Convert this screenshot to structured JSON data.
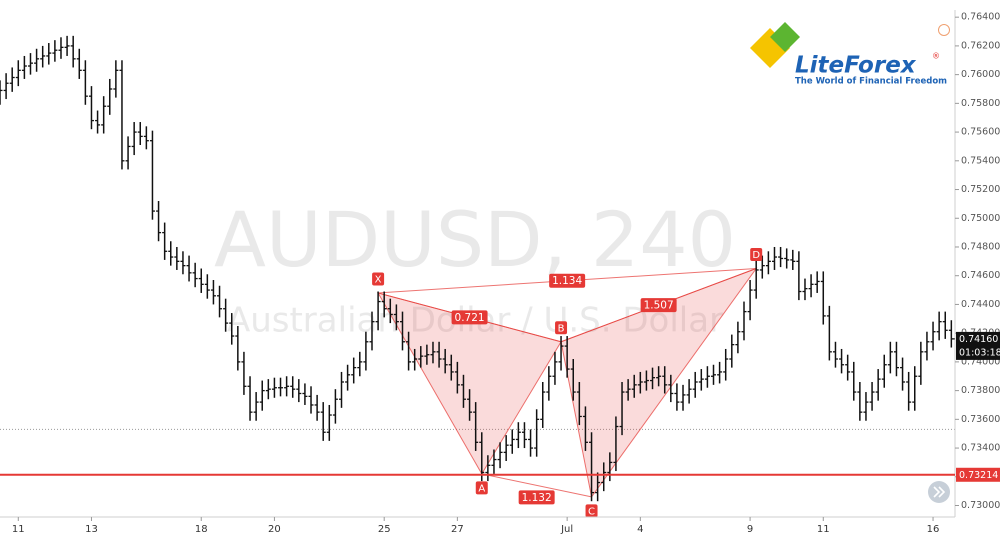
{
  "chart_data": {
    "type": "ohlc",
    "watermark": {
      "symbol": "AUDUSD, 240",
      "description": "Australian Dollar / U.S. Dollar"
    },
    "logo": {
      "brand": "LiteForex",
      "mark": "®",
      "tagline": "The World of Financial Freedom"
    },
    "ylim": [
      0.7292,
      0.7645
    ],
    "yticks": [
      {
        "value": 0.764,
        "label": "0.76400"
      },
      {
        "value": 0.762,
        "label": "0.76200"
      },
      {
        "value": 0.76,
        "label": "0.76000"
      },
      {
        "value": 0.758,
        "label": "0.75800"
      },
      {
        "value": 0.756,
        "label": "0.75600"
      },
      {
        "value": 0.754,
        "label": "0.75400"
      },
      {
        "value": 0.752,
        "label": "0.75200"
      },
      {
        "value": 0.75,
        "label": "0.75000"
      },
      {
        "value": 0.748,
        "label": "0.74800"
      },
      {
        "value": 0.746,
        "label": "0.74600"
      },
      {
        "value": 0.744,
        "label": "0.74400"
      },
      {
        "value": 0.742,
        "label": "0.74200"
      },
      {
        "value": 0.74,
        "label": "0.74000"
      },
      {
        "value": 0.738,
        "label": "0.73800"
      },
      {
        "value": 0.736,
        "label": "0.73600"
      },
      {
        "value": 0.734,
        "label": "0.73400"
      },
      {
        "value": 0.732,
        "label": "0.73200"
      },
      {
        "value": 0.73,
        "label": "0.73000"
      }
    ],
    "xlim": [
      0,
      156.6
    ],
    "xticks": [
      {
        "value": 3,
        "label": "11"
      },
      {
        "value": 15,
        "label": "13"
      },
      {
        "value": 33,
        "label": "18"
      },
      {
        "value": 45,
        "label": "20"
      },
      {
        "value": 63,
        "label": "25"
      },
      {
        "value": 75,
        "label": "27"
      },
      {
        "value": 93,
        "label": "Jul"
      },
      {
        "value": 105,
        "label": "4"
      },
      {
        "value": 123,
        "label": "9"
      },
      {
        "value": 135,
        "label": "11"
      },
      {
        "value": 153,
        "label": "16"
      }
    ],
    "color": "#111111",
    "bars": [
      [
        0.7585,
        0.7596,
        0.7579,
        0.7589
      ],
      [
        0.7589,
        0.7601,
        0.7583,
        0.7594
      ],
      [
        0.7594,
        0.7605,
        0.7588,
        0.7598
      ],
      [
        0.7598,
        0.761,
        0.7592,
        0.7603
      ],
      [
        0.7603,
        0.7613,
        0.7597,
        0.7606
      ],
      [
        0.7606,
        0.7615,
        0.76,
        0.7608
      ],
      [
        0.7608,
        0.7618,
        0.7602,
        0.7611
      ],
      [
        0.7611,
        0.762,
        0.7605,
        0.7613
      ],
      [
        0.7613,
        0.7622,
        0.7607,
        0.7615
      ],
      [
        0.7615,
        0.7624,
        0.7609,
        0.7617
      ],
      [
        0.7617,
        0.7626,
        0.7611,
        0.7619
      ],
      [
        0.7619,
        0.7627,
        0.7613,
        0.762
      ],
      [
        0.762,
        0.7627,
        0.7605,
        0.7611
      ],
      [
        0.7611,
        0.7618,
        0.7597,
        0.7603
      ],
      [
        0.7603,
        0.761,
        0.7579,
        0.7585
      ],
      [
        0.7585,
        0.7592,
        0.7562,
        0.7568
      ],
      [
        0.7568,
        0.7575,
        0.7559,
        0.7565
      ],
      [
        0.7565,
        0.7585,
        0.7559,
        0.7578
      ],
      [
        0.7578,
        0.7597,
        0.7572,
        0.759
      ],
      [
        0.759,
        0.761,
        0.7584,
        0.7603
      ],
      [
        0.7603,
        0.761,
        0.7534,
        0.754
      ],
      [
        0.754,
        0.7557,
        0.7534,
        0.755
      ],
      [
        0.755,
        0.7567,
        0.7544,
        0.756
      ],
      [
        0.756,
        0.7567,
        0.7551,
        0.7557
      ],
      [
        0.7557,
        0.7564,
        0.7548,
        0.7554
      ],
      [
        0.7554,
        0.7561,
        0.7499,
        0.7505
      ],
      [
        0.7505,
        0.7512,
        0.7484,
        0.749
      ],
      [
        0.749,
        0.7497,
        0.7471,
        0.7477
      ],
      [
        0.7477,
        0.7484,
        0.7467,
        0.7473
      ],
      [
        0.7473,
        0.748,
        0.7464,
        0.747
      ],
      [
        0.747,
        0.7477,
        0.7461,
        0.7467
      ],
      [
        0.7467,
        0.7474,
        0.7456,
        0.7462
      ],
      [
        0.7462,
        0.7469,
        0.7452,
        0.7458
      ],
      [
        0.7458,
        0.7465,
        0.7448,
        0.7454
      ],
      [
        0.7454,
        0.7461,
        0.7444,
        0.745
      ],
      [
        0.745,
        0.7457,
        0.744,
        0.7446
      ],
      [
        0.7446,
        0.7453,
        0.7431,
        0.7437
      ],
      [
        0.7437,
        0.7444,
        0.7421,
        0.7427
      ],
      [
        0.7427,
        0.7434,
        0.7412,
        0.7418
      ],
      [
        0.7418,
        0.7425,
        0.7394,
        0.74
      ],
      [
        0.74,
        0.7407,
        0.7377,
        0.7383
      ],
      [
        0.7383,
        0.739,
        0.7359,
        0.7365
      ],
      [
        0.7365,
        0.7379,
        0.7359,
        0.7372
      ],
      [
        0.7372,
        0.7387,
        0.7366,
        0.738
      ],
      [
        0.738,
        0.7388,
        0.7374,
        0.7381
      ],
      [
        0.7381,
        0.7389,
        0.7375,
        0.7382
      ],
      [
        0.7382,
        0.7389,
        0.7376,
        0.7382
      ],
      [
        0.7382,
        0.739,
        0.7376,
        0.7383
      ],
      [
        0.7383,
        0.739,
        0.7375,
        0.7381
      ],
      [
        0.7381,
        0.7388,
        0.7372,
        0.7378
      ],
      [
        0.7378,
        0.7385,
        0.737,
        0.7376
      ],
      [
        0.7376,
        0.7383,
        0.7364,
        0.737
      ],
      [
        0.737,
        0.7377,
        0.7359,
        0.7365
      ],
      [
        0.7365,
        0.7372,
        0.7345,
        0.7351
      ],
      [
        0.7351,
        0.737,
        0.7345,
        0.7363
      ],
      [
        0.7363,
        0.7381,
        0.7357,
        0.7374
      ],
      [
        0.7374,
        0.7393,
        0.7368,
        0.7386
      ],
      [
        0.7386,
        0.7398,
        0.738,
        0.7391
      ],
      [
        0.7391,
        0.7403,
        0.7385,
        0.7396
      ],
      [
        0.7396,
        0.7407,
        0.739,
        0.74
      ],
      [
        0.74,
        0.7421,
        0.7394,
        0.7414
      ],
      [
        0.7414,
        0.7435,
        0.7408,
        0.7428
      ],
      [
        0.7428,
        0.7449,
        0.7422,
        0.7442
      ],
      [
        0.7442,
        0.7449,
        0.7431,
        0.7437
      ],
      [
        0.7437,
        0.7444,
        0.7427,
        0.7433
      ],
      [
        0.7433,
        0.744,
        0.7422,
        0.7428
      ],
      [
        0.7428,
        0.7435,
        0.7408,
        0.7414
      ],
      [
        0.7414,
        0.7421,
        0.7394,
        0.74
      ],
      [
        0.74,
        0.7409,
        0.7394,
        0.7402
      ],
      [
        0.7402,
        0.7411,
        0.7396,
        0.7404
      ],
      [
        0.7404,
        0.7412,
        0.7398,
        0.7405
      ],
      [
        0.7405,
        0.7414,
        0.7399,
        0.7407
      ],
      [
        0.7407,
        0.7414,
        0.7396,
        0.7402
      ],
      [
        0.7402,
        0.7409,
        0.7392,
        0.7398
      ],
      [
        0.7398,
        0.7405,
        0.7387,
        0.7393
      ],
      [
        0.7393,
        0.74,
        0.7378,
        0.7384
      ],
      [
        0.7384,
        0.7391,
        0.7368,
        0.7374
      ],
      [
        0.7374,
        0.7381,
        0.7359,
        0.7365
      ],
      [
        0.7365,
        0.7372,
        0.7338,
        0.7344
      ],
      [
        0.7344,
        0.7351,
        0.7317,
        0.7323
      ],
      [
        0.7323,
        0.7335,
        0.7317,
        0.7328
      ],
      [
        0.7328,
        0.7339,
        0.7322,
        0.7332
      ],
      [
        0.7332,
        0.7344,
        0.7326,
        0.7337
      ],
      [
        0.7337,
        0.7349,
        0.7331,
        0.7342
      ],
      [
        0.7342,
        0.7353,
        0.7336,
        0.7346
      ],
      [
        0.7346,
        0.7358,
        0.734,
        0.7351
      ],
      [
        0.7351,
        0.7358,
        0.734,
        0.7346
      ],
      [
        0.7346,
        0.7353,
        0.7334,
        0.734
      ],
      [
        0.734,
        0.7367,
        0.7334,
        0.736
      ],
      [
        0.736,
        0.7386,
        0.7354,
        0.7379
      ],
      [
        0.7379,
        0.7397,
        0.7373,
        0.739
      ],
      [
        0.739,
        0.7407,
        0.7384,
        0.74
      ],
      [
        0.74,
        0.7418,
        0.7394,
        0.7411
      ],
      [
        0.7411,
        0.7418,
        0.7389,
        0.7395
      ],
      [
        0.7395,
        0.7402,
        0.7373,
        0.7379
      ],
      [
        0.7379,
        0.7386,
        0.7356,
        0.7362
      ],
      [
        0.7362,
        0.7369,
        0.7338,
        0.7344
      ],
      [
        0.7344,
        0.7351,
        0.7303,
        0.7309
      ],
      [
        0.7309,
        0.7323,
        0.7303,
        0.7316
      ],
      [
        0.7316,
        0.733,
        0.731,
        0.7323
      ],
      [
        0.7323,
        0.7337,
        0.7317,
        0.733
      ],
      [
        0.733,
        0.7362,
        0.7324,
        0.7355
      ],
      [
        0.7355,
        0.7386,
        0.7349,
        0.7379
      ],
      [
        0.7379,
        0.7388,
        0.7373,
        0.7381
      ],
      [
        0.7381,
        0.7391,
        0.7375,
        0.7384
      ],
      [
        0.7384,
        0.7393,
        0.7378,
        0.7386
      ],
      [
        0.7386,
        0.7394,
        0.738,
        0.7387
      ],
      [
        0.7387,
        0.7396,
        0.7381,
        0.7389
      ],
      [
        0.7389,
        0.7397,
        0.7383,
        0.739
      ],
      [
        0.739,
        0.7397,
        0.7378,
        0.7384
      ],
      [
        0.7384,
        0.7391,
        0.7372,
        0.7378
      ],
      [
        0.7378,
        0.7385,
        0.7366,
        0.7372
      ],
      [
        0.7372,
        0.7384,
        0.7366,
        0.7377
      ],
      [
        0.7377,
        0.7388,
        0.7371,
        0.7381
      ],
      [
        0.7381,
        0.7393,
        0.7375,
        0.7386
      ],
      [
        0.7386,
        0.7395,
        0.738,
        0.7388
      ],
      [
        0.7388,
        0.7397,
        0.7382,
        0.739
      ],
      [
        0.739,
        0.7398,
        0.7384,
        0.7391
      ],
      [
        0.7391,
        0.74,
        0.7385,
        0.7393
      ],
      [
        0.7393,
        0.7409,
        0.7387,
        0.7402
      ],
      [
        0.7402,
        0.7419,
        0.7396,
        0.7412
      ],
      [
        0.7412,
        0.7428,
        0.7406,
        0.7421
      ],
      [
        0.7421,
        0.7442,
        0.7415,
        0.7435
      ],
      [
        0.7435,
        0.7457,
        0.7429,
        0.745
      ],
      [
        0.745,
        0.7471,
        0.7444,
        0.7464
      ],
      [
        0.7464,
        0.7474,
        0.7458,
        0.7467
      ],
      [
        0.7467,
        0.7477,
        0.7461,
        0.747
      ],
      [
        0.747,
        0.748,
        0.7464,
        0.7473
      ],
      [
        0.7473,
        0.748,
        0.7466,
        0.7472
      ],
      [
        0.7472,
        0.7479,
        0.7465,
        0.7471
      ],
      [
        0.7471,
        0.7478,
        0.7464,
        0.747
      ],
      [
        0.747,
        0.7477,
        0.7443,
        0.7449
      ],
      [
        0.7449,
        0.7458,
        0.7443,
        0.7451
      ],
      [
        0.7451,
        0.7461,
        0.7445,
        0.7454
      ],
      [
        0.7454,
        0.7463,
        0.7448,
        0.7456
      ],
      [
        0.7456,
        0.7463,
        0.7426,
        0.7432
      ],
      [
        0.7432,
        0.7439,
        0.7401,
        0.7407
      ],
      [
        0.7407,
        0.7414,
        0.7396,
        0.7402
      ],
      [
        0.7402,
        0.7409,
        0.7392,
        0.7398
      ],
      [
        0.7398,
        0.7405,
        0.7387,
        0.7393
      ],
      [
        0.7393,
        0.74,
        0.7373,
        0.7379
      ],
      [
        0.7379,
        0.7386,
        0.7359,
        0.7365
      ],
      [
        0.7365,
        0.7379,
        0.7359,
        0.7372
      ],
      [
        0.7372,
        0.7386,
        0.7366,
        0.7379
      ],
      [
        0.7379,
        0.7395,
        0.7373,
        0.7388
      ],
      [
        0.7388,
        0.7405,
        0.7382,
        0.7398
      ],
      [
        0.7398,
        0.7414,
        0.7392,
        0.7407
      ],
      [
        0.7407,
        0.7414,
        0.739,
        0.7396
      ],
      [
        0.7396,
        0.7403,
        0.738,
        0.7386
      ],
      [
        0.7386,
        0.7393,
        0.7366,
        0.7372
      ],
      [
        0.7372,
        0.7397,
        0.7366,
        0.739
      ],
      [
        0.739,
        0.7414,
        0.7384,
        0.7407
      ],
      [
        0.7407,
        0.7421,
        0.7401,
        0.7414
      ],
      [
        0.7414,
        0.7428,
        0.7408,
        0.7421
      ],
      [
        0.7421,
        0.7435,
        0.7415,
        0.7428
      ],
      [
        0.7428,
        0.7435,
        0.7416,
        0.7422
      ],
      [
        0.7422,
        0.7429,
        0.741,
        0.7416
      ]
    ],
    "pattern": {
      "points": [
        {
          "label": "X",
          "x": 62,
          "y": 0.7448
        },
        {
          "label": "A",
          "x": 79,
          "y": 0.7322
        },
        {
          "label": "B",
          "x": 92,
          "y": 0.7414
        },
        {
          "label": "C",
          "x": 97,
          "y": 0.7306
        },
        {
          "label": "D",
          "x": 124,
          "y": 0.7465
        }
      ],
      "ratios": [
        {
          "value": 0.721,
          "between": [
            "X",
            "B"
          ]
        },
        {
          "value": 1.134,
          "between": [
            "X",
            "D"
          ]
        },
        {
          "value": 1.507,
          "between": [
            "B",
            "D"
          ]
        },
        {
          "value": 1.132,
          "between": [
            "A",
            "C"
          ]
        }
      ],
      "color": "#e53935"
    },
    "level": {
      "value": 0.73214,
      "label": "0.73214",
      "color": "#e53935"
    },
    "dotted_level": 0.7353,
    "last_price": {
      "value": 0.7416,
      "label": "0.74160",
      "countdown": "01:03:18"
    }
  }
}
